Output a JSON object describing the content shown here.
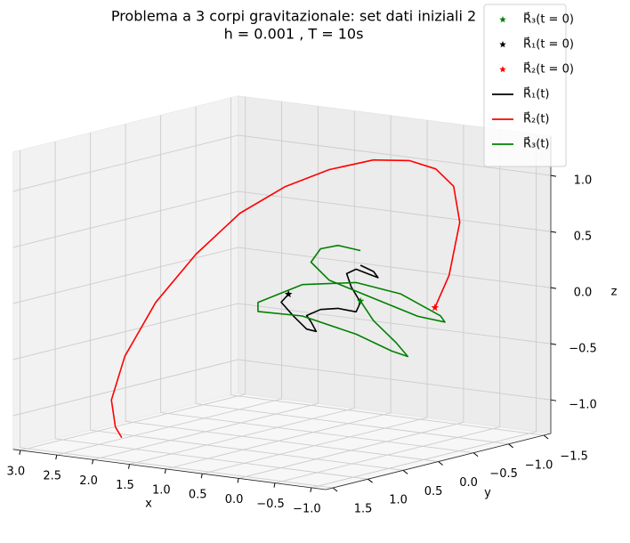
{
  "chart_data": {
    "type": "line3d",
    "title": "Problema a 3 corpi gravitazionale: set dati iniziali 2",
    "subtitle": "h = 0.001 , T = 10s",
    "xlabel": "x",
    "ylabel": "y",
    "zlabel": "z",
    "xlim": [
      -1.2,
      3.1
    ],
    "ylim": [
      -1.6,
      1.6
    ],
    "zlim": [
      -1.3,
      1.35
    ],
    "xticks": [
      {
        "value": -1.0,
        "label": "−1.0"
      },
      {
        "value": -0.5,
        "label": "−0.5"
      },
      {
        "value": 0.0,
        "label": "0.0"
      },
      {
        "value": 0.5,
        "label": "0.5"
      },
      {
        "value": 1.0,
        "label": "1.0"
      },
      {
        "value": 1.5,
        "label": "1.5"
      },
      {
        "value": 2.0,
        "label": "2.0"
      },
      {
        "value": 2.5,
        "label": "2.5"
      },
      {
        "value": 3.0,
        "label": "3.0"
      }
    ],
    "yticks": [
      {
        "value": -1.5,
        "label": "−1.5"
      },
      {
        "value": -1.0,
        "label": "−1.0"
      },
      {
        "value": -0.5,
        "label": "−0.5"
      },
      {
        "value": 0.0,
        "label": "0.0"
      },
      {
        "value": 0.5,
        "label": "0.5"
      },
      {
        "value": 1.0,
        "label": "1.0"
      },
      {
        "value": 1.5,
        "label": "1.5"
      }
    ],
    "zticks": [
      {
        "value": -1.0,
        "label": "−1.0"
      },
      {
        "value": -0.5,
        "label": "−0.5"
      },
      {
        "value": 0.0,
        "label": "0.0"
      },
      {
        "value": 0.5,
        "label": "0.5"
      },
      {
        "value": 1.0,
        "label": "1.0"
      }
    ],
    "grid": true,
    "legend": "upper right",
    "series": [
      {
        "name": "R⃗₃(t = 0)",
        "color": "#008000",
        "style": "star",
        "x": [
          0.16
        ],
        "y": [
          -0.3
        ],
        "z": [
          -0.03
        ]
      },
      {
        "name": "R⃗₁(t = 0)",
        "color": "#000000",
        "style": "star",
        "x": [
          0.86
        ],
        "y": [
          0.0
        ],
        "z": [
          0.02
        ]
      },
      {
        "name": "R⃗₂(t = 0)",
        "color": "#ff0000",
        "style": "star",
        "x": [
          -0.67
        ],
        "y": [
          -0.5
        ],
        "z": [
          -0.05
        ]
      },
      {
        "name": "R⃗₁(t)",
        "color": "#000000",
        "style": "line",
        "x": [
          0.86,
          0.96,
          0.79,
          0.61,
          0.48,
          0.55,
          0.61,
          0.42,
          0.18,
          -0.07,
          -0.13,
          0.0,
          0.06,
          -0.07,
          -0.25,
          -0.37,
          -0.31,
          -0.13
        ],
        "y": [
          0,
          0,
          0,
          0,
          0,
          0,
          0,
          0,
          0,
          0,
          0,
          0,
          0,
          0,
          0,
          0,
          0,
          0
        ],
        "z": [
          0.02,
          -0.06,
          -0.17,
          -0.27,
          -0.28,
          -0.2,
          -0.15,
          -0.08,
          -0.05,
          -0.06,
          0.03,
          0.16,
          0.27,
          0.32,
          0.29,
          0.27,
          0.32,
          0.36
        ]
      },
      {
        "name": "R⃗₂(t)",
        "color": "#ff0000",
        "style": "line",
        "x": [
          -0.67,
          -0.93,
          -1.14,
          -1.12,
          -0.94,
          -0.64,
          -0.21,
          0.33,
          0.88,
          1.43,
          1.97,
          2.46,
          2.82,
          2.94,
          2.66,
          2.38
        ],
        "y": [
          -0.5,
          -0.433,
          -0.367,
          -0.3,
          -0.233,
          -0.167,
          -0.1,
          -0.033,
          0.033,
          0.1,
          0.167,
          0.233,
          0.3,
          0.367,
          0.6,
          0.8
        ],
        "z": [
          -0.05,
          0.27,
          0.77,
          1.1,
          1.25,
          1.31,
          1.29,
          1.17,
          0.98,
          0.71,
          0.31,
          -0.15,
          -0.65,
          -1.04,
          -1.22,
          -1.26
        ]
      },
      {
        "name": "R⃗₃(t)",
        "color": "#008000",
        "style": "line",
        "x": [
          0.16,
          -0.02,
          -0.33,
          -0.49,
          -0.27,
          0.22,
          0.96,
          1.57,
          1.57,
          0.96,
          0.22,
          -0.39,
          -0.94,
          -1.0,
          -0.63,
          -0.02,
          0.59,
          0.84,
          0.71,
          0.47,
          0.16
        ],
        "y": [
          -0.3,
          -0.3,
          -0.3,
          -0.3,
          -0.3,
          -0.3,
          -0.3,
          -0.3,
          -0.3,
          -0.3,
          -0.3,
          -0.3,
          -0.3,
          -0.3,
          -0.3,
          -0.3,
          -0.3,
          -0.3,
          -0.3,
          -0.3,
          -0.3
        ],
        "z": [
          -0.03,
          -0.19,
          -0.36,
          -0.47,
          -0.44,
          -0.33,
          -0.23,
          -0.24,
          -0.16,
          0.05,
          0.13,
          0.08,
          -0.07,
          -0.12,
          -0.1,
          0.01,
          0.12,
          0.26,
          0.39,
          0.44,
          0.42
        ]
      }
    ]
  }
}
